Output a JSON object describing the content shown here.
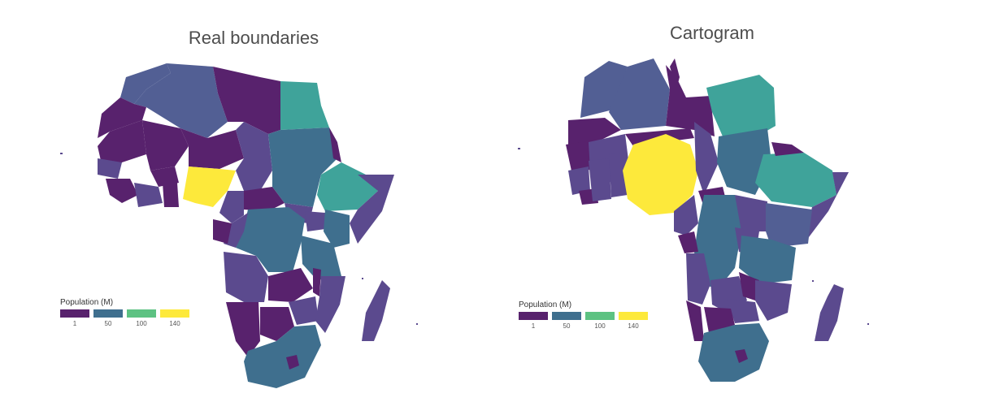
{
  "panels": [
    {
      "title": "Real boundaries"
    },
    {
      "title": "Cartogram"
    }
  ],
  "legend": {
    "title": "Population (M)",
    "keys": [
      {
        "label": "1",
        "color": "#58226d"
      },
      {
        "label": "50",
        "color": "#3f6f8e"
      },
      {
        "label": "100",
        "color": "#5dc282"
      },
      {
        "label": "140",
        "color": "#fde93b"
      }
    ]
  },
  "palette": {
    "pop_1": "#58226d",
    "pop_10": "#5b4a8e",
    "pop_30": "#525f94",
    "pop_50": "#3f6f8e",
    "pop_80": "#3fa39a",
    "pop_140": "#fde93b"
  }
}
